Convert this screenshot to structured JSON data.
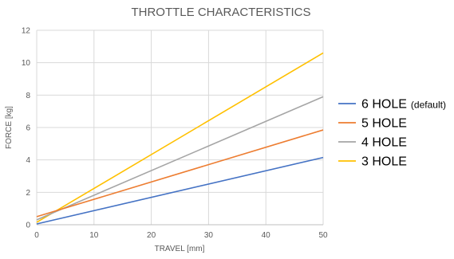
{
  "chart_data": {
    "type": "line",
    "title": "THROTTLE CHARACTERISTICS",
    "xlabel": "TRAVEL [mm]",
    "ylabel": "FORCE [kg]",
    "xlim": [
      0,
      50
    ],
    "ylim": [
      0,
      12
    ],
    "xticks": [
      "0",
      "10",
      "20",
      "30",
      "40",
      "50"
    ],
    "yticks": [
      "0",
      "2",
      "4",
      "6",
      "8",
      "10",
      "12"
    ],
    "grid": true,
    "legend_position": "right",
    "series": [
      {
        "name": "6 HOLE",
        "suffix": "(default)",
        "color": "#4472C4",
        "x": [
          0,
          50
        ],
        "y": [
          0.05,
          4.15
        ]
      },
      {
        "name": "5 HOLE",
        "suffix": "",
        "color": "#ED7D31",
        "x": [
          0,
          50
        ],
        "y": [
          0.5,
          5.85
        ]
      },
      {
        "name": "4 HOLE",
        "suffix": "",
        "color": "#A5A5A5",
        "x": [
          0,
          50
        ],
        "y": [
          0.3,
          7.9
        ]
      },
      {
        "name": "3 HOLE",
        "suffix": "",
        "color": "#FFC000",
        "x": [
          0,
          50
        ],
        "y": [
          0.15,
          10.6
        ]
      }
    ]
  }
}
